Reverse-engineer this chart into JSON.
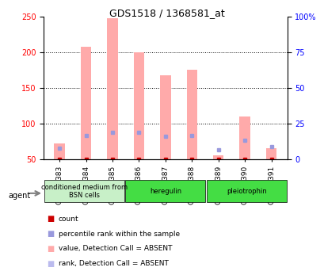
{
  "title": "GDS1518 / 1368581_at",
  "samples": [
    "GSM76383",
    "GSM76384",
    "GSM76385",
    "GSM76386",
    "GSM76387",
    "GSM76388",
    "GSM76389",
    "GSM76390",
    "GSM76391"
  ],
  "pink_values": [
    72,
    207,
    247,
    200,
    167,
    175,
    55,
    110,
    65
  ],
  "pink_base": [
    50,
    50,
    50,
    50,
    50,
    50,
    50,
    50,
    50
  ],
  "blue_values": [
    65,
    83,
    88,
    87,
    82,
    83,
    63,
    76,
    67
  ],
  "red_dot_y": [
    50,
    50,
    50,
    50,
    50,
    50,
    50,
    50,
    50
  ],
  "groups": [
    {
      "label": "conditioned medium from\nBSN cells",
      "start": 0,
      "end": 3,
      "color": "#90ee90"
    },
    {
      "label": "heregulin",
      "start": 3,
      "end": 6,
      "color": "#00cc00"
    },
    {
      "label": "pleiotrophin",
      "start": 6,
      "end": 9,
      "color": "#00cc00"
    }
  ],
  "ylim": [
    50,
    250
  ],
  "yticks_left": [
    50,
    100,
    150,
    200,
    250
  ],
  "yticks_right": [
    0,
    25,
    50,
    75,
    100
  ],
  "pink_color": "#ffaaaa",
  "blue_color": "#9999dd",
  "red_color": "#cc0000",
  "bar_width": 0.4,
  "dot_size": 5,
  "background_color": "#ffffff"
}
